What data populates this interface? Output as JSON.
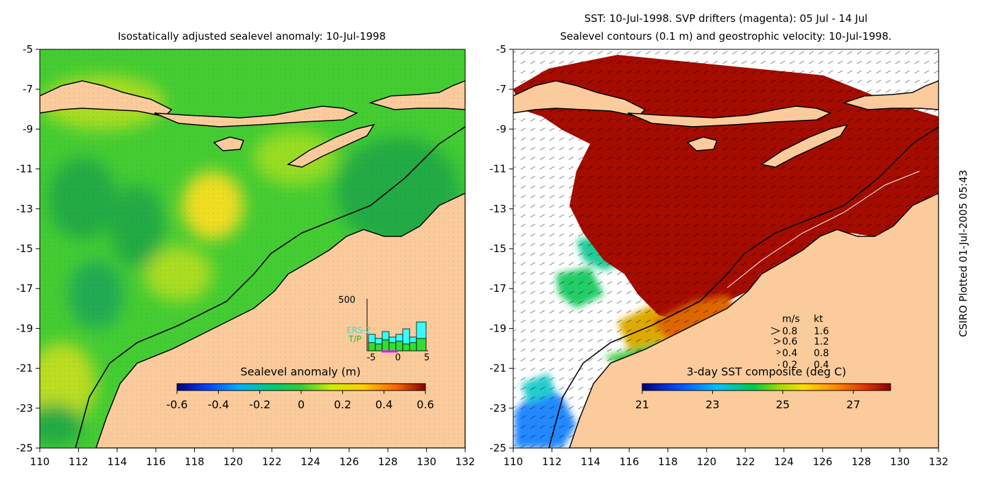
{
  "left_panel": {
    "title": "Isostatically adjusted sealevel anomaly: 10-Jul-1998",
    "x_ticks": [
      "110",
      "112",
      "114",
      "116",
      "118",
      "120",
      "122",
      "124",
      "126",
      "128",
      "130",
      "132"
    ],
    "y_ticks": [
      "-5",
      "-7",
      "-9",
      "-11",
      "-13",
      "-15",
      "-17",
      "-19",
      "-21",
      "-23",
      "-25"
    ],
    "colorbar": {
      "label": "Sealevel anomaly (m)",
      "ticks": [
        "-0.6",
        "-0.4",
        "-0.2",
        "0",
        "0.2",
        "0.4",
        "0.6"
      ]
    },
    "histogram": {
      "ymax_label": "500",
      "x_ticks": [
        "-5",
        "0",
        "5"
      ],
      "legend": [
        {
          "name": "ERS-2",
          "color": "#33ffff"
        },
        {
          "name": "T/P",
          "color": "#33dd33"
        }
      ]
    }
  },
  "right_panel": {
    "title_line1": "SST: 10-Jul-1998. SVP drifters (magenta): 05 Jul - 14 Jul",
    "title_line2": "Sealevel contours (0.1 m) and geostrophic velocity: 10-Jul-1998.",
    "x_ticks": [
      "110",
      "112",
      "114",
      "116",
      "118",
      "120",
      "122",
      "124",
      "126",
      "128",
      "130",
      "132"
    ],
    "y_ticks": [
      "-5",
      "-7",
      "-9",
      "-11",
      "-13",
      "-15",
      "-17",
      "-19",
      "-21",
      "-23",
      "-25"
    ],
    "colorbar": {
      "label": "3-day SST composite (deg C)",
      "ticks": [
        "21",
        "23",
        "25",
        "27"
      ]
    },
    "velocity_legend": {
      "header_ms": "m/s",
      "header_kt": "kt",
      "rows": [
        {
          "ms": "0.8",
          "kt": "1.6"
        },
        {
          "ms": "0.6",
          "kt": "1.2"
        },
        {
          "ms": "0.4",
          "kt": "0.8"
        },
        {
          "ms": "0.2",
          "kt": "0.4"
        }
      ]
    }
  },
  "side_label": "CSIRO Plotted 01-Jul-2005 05:43",
  "colors": {
    "land": "#fbcb9c",
    "ocean_green": "#33cc33",
    "sst_warm": "#a50c00",
    "coast": "#000000"
  }
}
